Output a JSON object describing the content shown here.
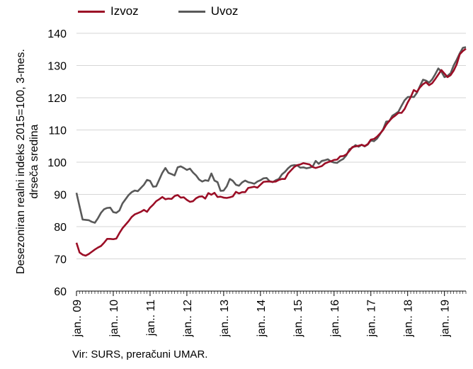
{
  "chart_data": {
    "type": "line",
    "title": "",
    "ylabel_lines": [
      "Desezoniran realni indeks 2015=100, 3-mes.",
      "drseča sredina"
    ],
    "xlabel": "",
    "ylim": [
      60,
      140
    ],
    "yticks": [
      60,
      70,
      80,
      90,
      100,
      110,
      120,
      130,
      140
    ],
    "xticks": [
      "jan.. 09",
      "jan.. 10",
      "jan.. 11",
      "jan.. 12",
      "jan.. 13",
      "jan.. 14",
      "jan.. 15",
      "jan.. 16",
      "jan.. 17",
      "jan.. 18",
      "jan.. 19"
    ],
    "grid": "horizontal",
    "legend_position": "top",
    "start_period": "jan.. 09",
    "series": [
      {
        "name": "Izvoz",
        "color": "#9b0e26",
        "values": [
          75,
          72,
          71.3,
          71,
          71.5,
          72.2,
          72.9,
          73.5,
          74,
          75,
          76.2,
          76.2,
          76.1,
          76.3,
          78,
          79.5,
          80.6,
          81.7,
          83,
          83.8,
          84.2,
          84.6,
          85.2,
          84.6,
          85.9,
          86.8,
          87.9,
          88.5,
          89.2,
          88.5,
          88.7,
          88.6,
          89.5,
          89.8,
          89,
          89.1,
          88.3,
          87.7,
          87.9,
          88.8,
          89.3,
          89.4,
          88.7,
          90.4,
          89.9,
          90.5,
          89.2,
          89.3,
          89,
          88.9,
          89.1,
          89.4,
          90.8,
          90.3,
          90.7,
          90.7,
          92,
          92.2,
          92.4,
          92.1,
          93,
          93.9,
          94,
          94,
          93.9,
          94,
          94.5,
          94.8,
          94.8,
          96.5,
          97.5,
          98.5,
          99.1,
          99.3,
          99.7,
          99.5,
          99.3,
          98.5,
          98.2,
          98.5,
          98.8,
          99.6,
          100,
          100.3,
          100.7,
          100.8,
          101.8,
          101.9,
          102.4,
          103.5,
          104.7,
          104.9,
          105.1,
          105.4,
          105,
          105.6,
          107,
          107.2,
          107.9,
          108.9,
          110,
          111.6,
          112.8,
          113.8,
          114.5,
          115.3,
          115.3,
          116.5,
          118.5,
          120.2,
          122.4,
          121.8,
          123.2,
          124.2,
          124.8,
          123.9,
          124.5,
          125.8,
          127.2,
          128.6,
          127.5,
          126.4,
          127,
          128.4,
          130.4,
          133.5,
          134.5,
          135.2
        ]
      },
      {
        "name": "Uvoz",
        "color": "#595959",
        "values": [
          90.5,
          86.3,
          82.2,
          82.1,
          82,
          81.5,
          81.2,
          82.6,
          84.3,
          85.4,
          85.8,
          85.9,
          84.5,
          84.3,
          85,
          87.2,
          88.5,
          89.8,
          90.7,
          91.2,
          91,
          92,
          93,
          94.5,
          94.2,
          92.4,
          92.5,
          94.6,
          96.7,
          98.2,
          96.7,
          96.3,
          95.9,
          98.4,
          98.7,
          98.2,
          97.6,
          98,
          96.8,
          95.9,
          94.6,
          94,
          94.4,
          94.2,
          96.5,
          94.3,
          93.8,
          91.1,
          91.2,
          92.5,
          94.8,
          94.2,
          93,
          92.7,
          93.7,
          94.3,
          93.8,
          93.6,
          93.3,
          94,
          94.4,
          95,
          95.1,
          94.1,
          93.8,
          94.4,
          94.8,
          96.2,
          97,
          98.1,
          98.9,
          99.1,
          99,
          98.3,
          98.4,
          98.1,
          98.3,
          98.6,
          100.4,
          99.5,
          100.4,
          100.6,
          100.9,
          100.2,
          99.9,
          99.8,
          100.5,
          101,
          102.1,
          104,
          104.5,
          105.3,
          104.8,
          105.4,
          104.9,
          105.5,
          106.8,
          106.5,
          107.3,
          108.7,
          110.2,
          112.6,
          112.7,
          114.4,
          115,
          115.7,
          117.5,
          119.2,
          120.2,
          120.3,
          120.2,
          121.5,
          123.6,
          125.6,
          125.3,
          124.7,
          125.7,
          127.3,
          129.1,
          128.1,
          126.4,
          126.8,
          127.6,
          130,
          131.8,
          133.8,
          135.5,
          135.7
        ]
      }
    ],
    "source": "Vir: SURS, preračuni UMAR."
  }
}
